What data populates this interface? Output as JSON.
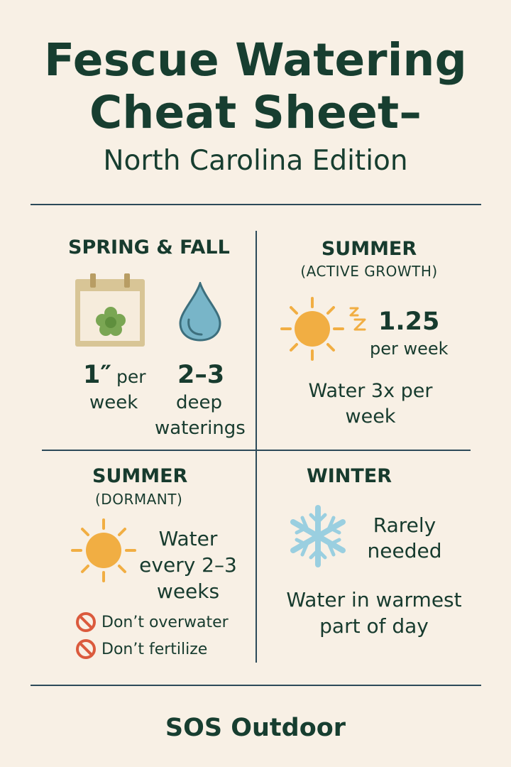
{
  "header": {
    "title_line1": "Fescue Watering",
    "title_line2": "Cheat Sheet–",
    "subtitle": "North Carolina Edition"
  },
  "sections": {
    "spring_fall": {
      "title": "SPRING & FALL",
      "amount_value": "1″",
      "amount_unit_line1": "per",
      "amount_unit_line2": "week",
      "waterings_value": "2–3",
      "waterings_line1": "deep",
      "waterings_line2": "waterings",
      "icons": [
        "calendar-icon",
        "flower-icon",
        "water-drop-icon"
      ]
    },
    "summer_active": {
      "title": "SUMMER",
      "note": "(ACTIVE GROWTH)",
      "amount_value": "1.25",
      "amount_unit": "per week",
      "frequency_line1": "Water 3x per",
      "frequency_line2": "week",
      "icons": [
        "sun-icon",
        "sleep-z-icon"
      ]
    },
    "summer_dormant": {
      "title": "SUMMER",
      "note": "(DORMANT)",
      "water_line1": "Water",
      "water_line2": "every 2–3",
      "water_line3": "weeks",
      "warnings": [
        "Don’t overwater",
        "Don’t fertilize"
      ],
      "icons": [
        "sun-icon",
        "prohibited-icon"
      ]
    },
    "winter": {
      "title": "WINTER",
      "needed_line1": "Rarely",
      "needed_line2": "needed",
      "tip_line1": "Water in warmest",
      "tip_line2": "part of day",
      "icons": [
        "snowflake-icon"
      ]
    }
  },
  "footer": {
    "brand": "SOS Outdoor"
  },
  "colors": {
    "background": "#f8f0e5",
    "text": "#173b2e",
    "rule": "#2c4a59",
    "sun": "#f1ae43",
    "drop": "#76b5c9",
    "flower": "#79a552",
    "snowflake": "#9acfe0",
    "warning": "#db5a3d",
    "calendar": "#d7c394"
  }
}
